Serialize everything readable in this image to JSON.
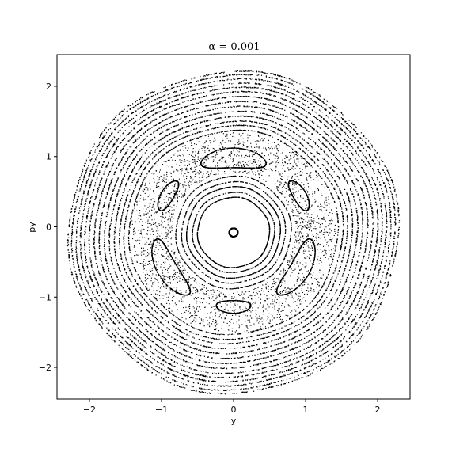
{
  "chart_data": {
    "type": "scatter",
    "title": "α = 0.001",
    "xlabel": "y",
    "ylabel": "py",
    "xlim": [
      -2.45,
      2.45
    ],
    "ylim": [
      -2.45,
      2.45
    ],
    "xticks": [
      -2,
      -1,
      0,
      1,
      2
    ],
    "yticks": [
      -2,
      -1,
      0,
      1,
      2
    ],
    "grid": false,
    "point_color": "#000000",
    "series": [
      {
        "kind": "closed_curves",
        "description_type": "rings",
        "rings": [
          {
            "cx": 0.0,
            "cy": -0.08,
            "r": 0.06,
            "n": 300
          },
          {
            "cx": 0.0,
            "cy": -0.08,
            "r": 0.5,
            "n": 700
          },
          {
            "cx": 0.0,
            "cy": -0.08,
            "r": 0.57,
            "n": 400
          },
          {
            "cx": 0.0,
            "cy": -0.08,
            "r": 0.65,
            "n": 700
          },
          {
            "cx": 0.0,
            "cy": -0.08,
            "r": 0.72,
            "n": 400
          },
          {
            "cx": 0.0,
            "cy": -0.08,
            "r": 0.8,
            "n": 500
          },
          {
            "cx": 0.0,
            "cy": -0.08,
            "r": 1.45,
            "n": 700
          },
          {
            "cx": 0.0,
            "cy": -0.08,
            "r": 1.52,
            "n": 700
          },
          {
            "cx": 0.0,
            "cy": -0.08,
            "r": 1.58,
            "n": 700
          },
          {
            "cx": 0.0,
            "cy": -0.08,
            "r": 1.65,
            "n": 800
          },
          {
            "cx": 0.0,
            "cy": -0.08,
            "r": 1.72,
            "n": 800
          },
          {
            "cx": 0.0,
            "cy": -0.08,
            "r": 1.79,
            "n": 800
          },
          {
            "cx": 0.0,
            "cy": -0.08,
            "r": 1.86,
            "n": 900
          },
          {
            "cx": 0.0,
            "cy": -0.08,
            "r": 1.93,
            "n": 900
          },
          {
            "cx": 0.0,
            "cy": -0.08,
            "r": 2.0,
            "n": 900
          },
          {
            "cx": 0.0,
            "cy": -0.08,
            "r": 2.06,
            "n": 900
          },
          {
            "cx": 0.0,
            "cy": -0.08,
            "r": 2.12,
            "n": 900
          },
          {
            "cx": 0.0,
            "cy": -0.08,
            "r": 2.18,
            "n": 900
          },
          {
            "cx": 0.0,
            "cy": -0.08,
            "r": 2.24,
            "n": 900
          },
          {
            "cx": 0.0,
            "cy": -0.08,
            "r": 2.29,
            "n": 700
          }
        ]
      },
      {
        "kind": "chaotic_band",
        "cx": 0.0,
        "cy": -0.08,
        "r_min": 0.85,
        "r_max": 1.42,
        "n": 2600
      },
      {
        "kind": "islands",
        "items": [
          {
            "center_angle_deg": 90,
            "r_center": 1.06,
            "half_width": 0.14,
            "angular_span_deg": 50,
            "n": 500
          },
          {
            "center_angle_deg": 210,
            "r_center": 1.06,
            "half_width": 0.14,
            "angular_span_deg": 50,
            "n": 500
          },
          {
            "center_angle_deg": 330,
            "r_center": 1.06,
            "half_width": 0.14,
            "angular_span_deg": 50,
            "n": 500
          },
          {
            "center_angle_deg": 150,
            "r_center": 1.06,
            "half_width": 0.09,
            "angular_span_deg": 26,
            "n": 350
          },
          {
            "center_angle_deg": 30,
            "r_center": 1.06,
            "half_width": 0.09,
            "angular_span_deg": 26,
            "n": 350
          },
          {
            "center_angle_deg": 270,
            "r_center": 1.06,
            "half_width": 0.09,
            "angular_span_deg": 26,
            "n": 350
          }
        ]
      }
    ]
  }
}
